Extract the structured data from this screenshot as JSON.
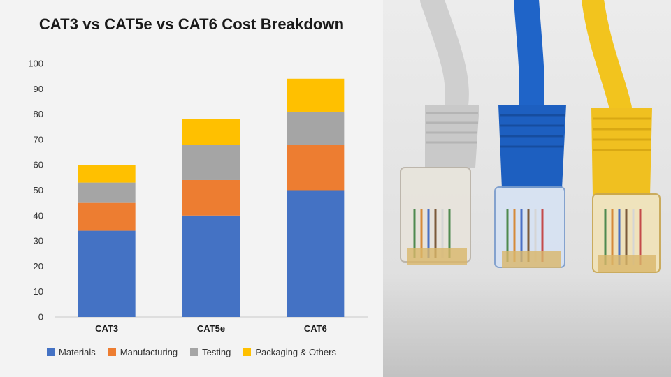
{
  "chart_data": {
    "type": "bar",
    "stacked": true,
    "title": "CAT3 vs CAT5e vs CAT6 Cost Breakdown",
    "categories": [
      "CAT3",
      "CAT5e",
      "CAT6"
    ],
    "ylim": [
      0,
      100
    ],
    "yticks": [
      "0",
      "10",
      "20",
      "30",
      "40",
      "50",
      "60",
      "70",
      "80",
      "90",
      "100"
    ],
    "grid": false,
    "legend_position": "bottom",
    "series": [
      {
        "name": "Materials",
        "color": "#4472c4",
        "values": [
          34,
          40,
          50
        ]
      },
      {
        "name": "Manufacturing",
        "color": "#ed7d31",
        "values": [
          11,
          14,
          18
        ]
      },
      {
        "name": "Testing",
        "color": "#a5a5a5",
        "values": [
          8,
          14,
          13
        ]
      },
      {
        "name": "Packaging & Others",
        "color": "#ffc000",
        "values": [
          7,
          10,
          13
        ]
      }
    ]
  },
  "photo": {
    "icon": "ethernet-cables-photo",
    "cable_colors": [
      "#cfcfcf",
      "#1f64c8",
      "#f2c41e"
    ]
  }
}
